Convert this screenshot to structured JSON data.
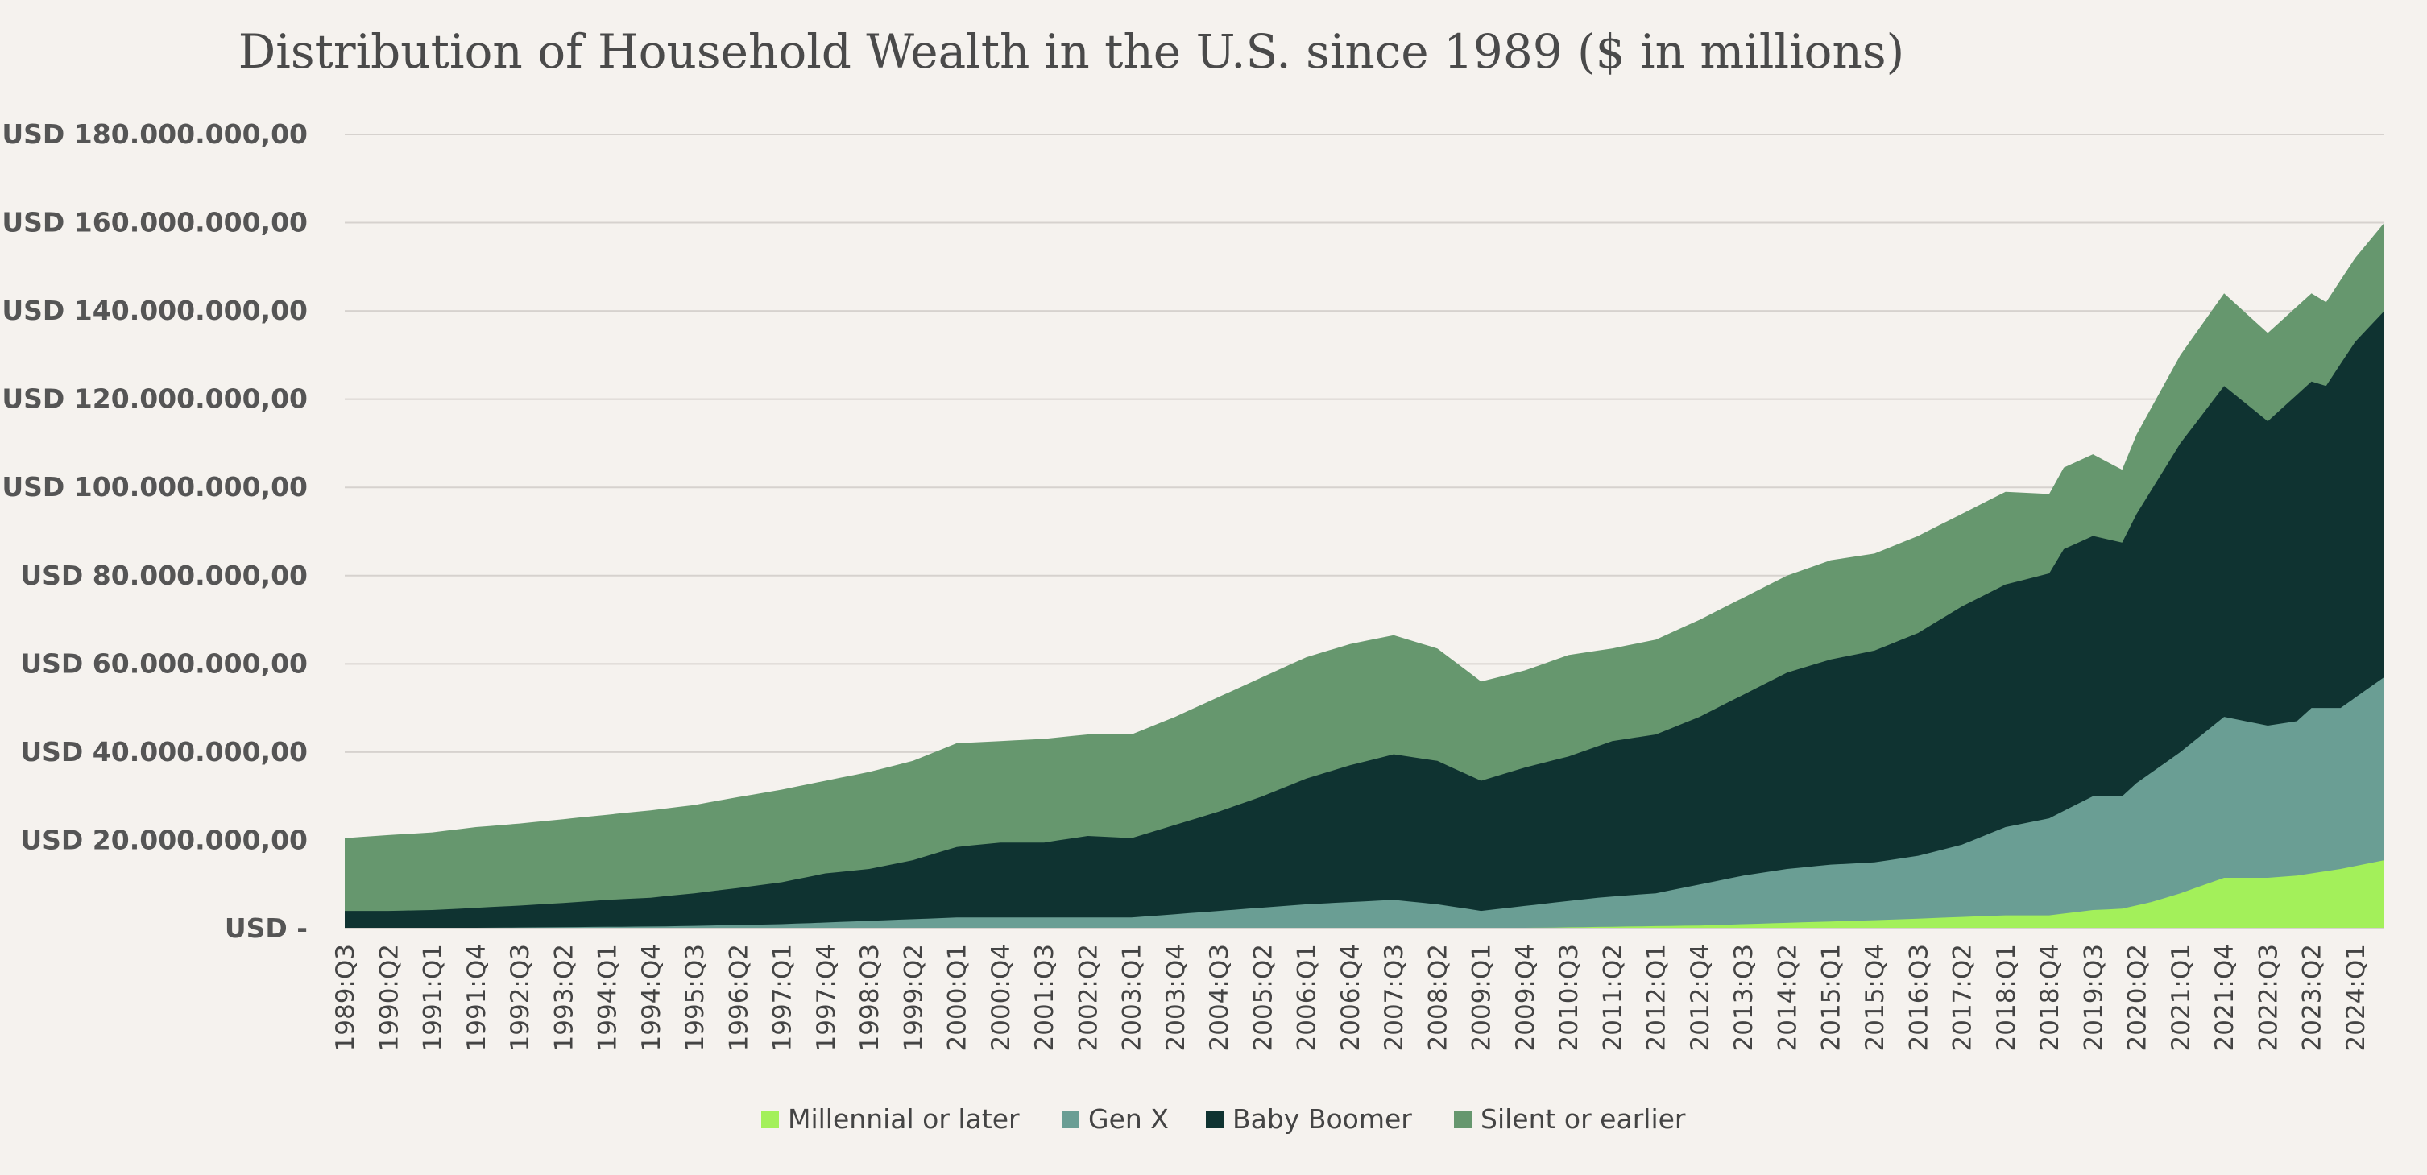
{
  "chart_data": {
    "type": "area",
    "stacked": true,
    "title": "Distribution of Household Wealth in the U.S. since 1989 ($ in millions)",
    "xlabel": "",
    "ylabel": "",
    "ylim": [
      0,
      180000000
    ],
    "y_ticks": [
      0,
      20000000,
      40000000,
      60000000,
      80000000,
      100000000,
      120000000,
      140000000,
      160000000,
      180000000
    ],
    "y_tick_labels": [
      "USD -",
      "USD 20.000.000,00",
      "USD 40.000.000,00",
      "USD 60.000.000,00",
      "USD 80.000.000,00",
      "USD 100.000.000,00",
      "USD 120.000.000,00",
      "USD 140.000.000,00",
      "USD 160.000.000,00",
      "USD 180.000.000,00"
    ],
    "x_range": [
      "1989:Q3",
      "2024:Q3"
    ],
    "x_tick_labels": [
      "1989:Q3",
      "1990:Q2",
      "1991:Q1",
      "1991:Q4",
      "1992:Q3",
      "1993:Q2",
      "1994:Q1",
      "1994:Q4",
      "1995:Q3",
      "1996:Q2",
      "1997:Q1",
      "1997:Q4",
      "1998:Q3",
      "1999:Q2",
      "2000:Q1",
      "2000:Q4",
      "2001:Q3",
      "2002:Q2",
      "2003:Q1",
      "2003:Q4",
      "2004:Q3",
      "2005:Q2",
      "2006:Q1",
      "2006:Q4",
      "2007:Q3",
      "2008:Q2",
      "2009:Q1",
      "2009:Q4",
      "2010:Q3",
      "2011:Q2",
      "2012:Q1",
      "2012:Q4",
      "2013:Q3",
      "2014:Q2",
      "2015:Q1",
      "2015:Q4",
      "2016:Q3",
      "2017:Q2",
      "2018:Q1",
      "2018:Q4",
      "2019:Q3",
      "2020:Q2",
      "2021:Q1",
      "2021:Q4",
      "2022:Q3",
      "2023:Q2",
      "2024:Q1"
    ],
    "grid": true,
    "legend_position": "bottom",
    "series": [
      {
        "name": "Millennial or later",
        "color": "#a3f05a",
        "points": [
          [
            "1989:Q3",
            0
          ],
          [
            "1995:Q1",
            0
          ],
          [
            "2000:Q1",
            0
          ],
          [
            "2005:Q1",
            0
          ],
          [
            "2010:Q1",
            200000
          ],
          [
            "2012:Q4",
            700000
          ],
          [
            "2014:Q1",
            1200000
          ],
          [
            "2015:Q1",
            1600000
          ],
          [
            "2016:Q1",
            2000000
          ],
          [
            "2017:Q1",
            2500000
          ],
          [
            "2018:Q1",
            3000000
          ],
          [
            "2018:Q4",
            3000000
          ],
          [
            "2019:Q3",
            4200000
          ],
          [
            "2020:Q1",
            4500000
          ],
          [
            "2020:Q3",
            6000000
          ],
          [
            "2021:Q1",
            8000000
          ],
          [
            "2021:Q4",
            11500000
          ],
          [
            "2022:Q3",
            11500000
          ],
          [
            "2023:Q1",
            12000000
          ],
          [
            "2023:Q4",
            13500000
          ],
          [
            "2024:Q3",
            15500000
          ]
        ]
      },
      {
        "name": "Gen X",
        "color": "#6a9e94",
        "points": [
          [
            "1989:Q3",
            0
          ],
          [
            "1992:Q1",
            200000
          ],
          [
            "1995:Q1",
            500000
          ],
          [
            "1997:Q1",
            1000000
          ],
          [
            "1998:Q1",
            1500000
          ],
          [
            "1999:Q1",
            2000000
          ],
          [
            "2000:Q1",
            2500000
          ],
          [
            "2001:Q4",
            2500000
          ],
          [
            "2003:Q1",
            2500000
          ],
          [
            "2004:Q1",
            3500000
          ],
          [
            "2005:Q1",
            4500000
          ],
          [
            "2006:Q1",
            5500000
          ],
          [
            "2007:Q3",
            6500000
          ],
          [
            "2008:Q2",
            5500000
          ],
          [
            "2009:Q1",
            4000000
          ],
          [
            "2010:Q1",
            5500000
          ],
          [
            "2011:Q1",
            7000000
          ],
          [
            "2012:Q1",
            8000000
          ],
          [
            "2012:Q4",
            10000000
          ],
          [
            "2013:Q3",
            12000000
          ],
          [
            "2014:Q2",
            13500000
          ],
          [
            "2015:Q1",
            14500000
          ],
          [
            "2015:Q4",
            15000000
          ],
          [
            "2016:Q3",
            16500000
          ],
          [
            "2017:Q2",
            19000000
          ],
          [
            "2018:Q1",
            23000000
          ],
          [
            "2018:Q4",
            25000000
          ],
          [
            "2019:Q3",
            30000000
          ],
          [
            "2020:Q1",
            30000000
          ],
          [
            "2020:Q2",
            33000000
          ],
          [
            "2021:Q1",
            40000000
          ],
          [
            "2021:Q4",
            48000000
          ],
          [
            "2022:Q3",
            46000000
          ],
          [
            "2023:Q1",
            47000000
          ],
          [
            "2023:Q2",
            50000000
          ],
          [
            "2023:Q4",
            50000000
          ],
          [
            "2024:Q3",
            57000000
          ]
        ]
      },
      {
        "name": "Baby Boomer",
        "color": "#0f3331",
        "points": [
          [
            "1989:Q3",
            4000000
          ],
          [
            "1990:Q2",
            4000000
          ],
          [
            "1991:Q1",
            4200000
          ],
          [
            "1991:Q4",
            4700000
          ],
          [
            "1992:Q3",
            5200000
          ],
          [
            "1993:Q2",
            5800000
          ],
          [
            "1994:Q1",
            6500000
          ],
          [
            "1994:Q4",
            7000000
          ],
          [
            "1995:Q3",
            8000000
          ],
          [
            "1996:Q2",
            9200000
          ],
          [
            "1997:Q1",
            10500000
          ],
          [
            "1997:Q4",
            12500000
          ],
          [
            "1998:Q3",
            13500000
          ],
          [
            "1999:Q2",
            15500000
          ],
          [
            "2000:Q1",
            18500000
          ],
          [
            "2000:Q4",
            19500000
          ],
          [
            "2001:Q3",
            19500000
          ],
          [
            "2002:Q2",
            21000000
          ],
          [
            "2003:Q1",
            20500000
          ],
          [
            "2003:Q4",
            23500000
          ],
          [
            "2004:Q3",
            26500000
          ],
          [
            "2005:Q2",
            30000000
          ],
          [
            "2006:Q1",
            34000000
          ],
          [
            "2006:Q4",
            37000000
          ],
          [
            "2007:Q3",
            39500000
          ],
          [
            "2008:Q2",
            38000000
          ],
          [
            "2009:Q1",
            33500000
          ],
          [
            "2009:Q4",
            36500000
          ],
          [
            "2010:Q3",
            39000000
          ],
          [
            "2011:Q2",
            42500000
          ],
          [
            "2012:Q1",
            44000000
          ],
          [
            "2012:Q4",
            48000000
          ],
          [
            "2013:Q3",
            53000000
          ],
          [
            "2014:Q2",
            58000000
          ],
          [
            "2015:Q1",
            61000000
          ],
          [
            "2015:Q4",
            63000000
          ],
          [
            "2016:Q3",
            67000000
          ],
          [
            "2017:Q2",
            73000000
          ],
          [
            "2018:Q1",
            78000000
          ],
          [
            "2018:Q4",
            80500000
          ],
          [
            "2019:Q1",
            86000000
          ],
          [
            "2019:Q3",
            89000000
          ],
          [
            "2020:Q1",
            87500000
          ],
          [
            "2020:Q2",
            94000000
          ],
          [
            "2021:Q1",
            110000000
          ],
          [
            "2021:Q4",
            123000000
          ],
          [
            "2022:Q3",
            115000000
          ],
          [
            "2023:Q2",
            124000000
          ],
          [
            "2023:Q3",
            123000000
          ],
          [
            "2024:Q1",
            133000000
          ],
          [
            "2024:Q3",
            140000000
          ]
        ]
      },
      {
        "name": "Silent or earlier",
        "color": "#66976e",
        "points": [
          [
            "1989:Q3",
            20500000
          ],
          [
            "1990:Q2",
            21200000
          ],
          [
            "1991:Q1",
            21800000
          ],
          [
            "1991:Q4",
            23000000
          ],
          [
            "1992:Q3",
            23800000
          ],
          [
            "1993:Q2",
            24800000
          ],
          [
            "1994:Q1",
            25800000
          ],
          [
            "1994:Q4",
            26800000
          ],
          [
            "1995:Q3",
            28000000
          ],
          [
            "1996:Q2",
            29800000
          ],
          [
            "1997:Q1",
            31500000
          ],
          [
            "1997:Q4",
            33500000
          ],
          [
            "1998:Q3",
            35500000
          ],
          [
            "1999:Q2",
            38000000
          ],
          [
            "2000:Q1",
            42000000
          ],
          [
            "2000:Q4",
            42500000
          ],
          [
            "2001:Q3",
            43000000
          ],
          [
            "2002:Q2",
            44000000
          ],
          [
            "2003:Q1",
            44000000
          ],
          [
            "2003:Q4",
            48000000
          ],
          [
            "2004:Q3",
            52500000
          ],
          [
            "2005:Q2",
            57000000
          ],
          [
            "2006:Q1",
            61500000
          ],
          [
            "2006:Q4",
            64500000
          ],
          [
            "2007:Q3",
            66500000
          ],
          [
            "2008:Q2",
            63500000
          ],
          [
            "2009:Q1",
            56000000
          ],
          [
            "2009:Q4",
            58500000
          ],
          [
            "2010:Q3",
            62000000
          ],
          [
            "2011:Q2",
            63500000
          ],
          [
            "2012:Q1",
            65500000
          ],
          [
            "2012:Q4",
            70000000
          ],
          [
            "2013:Q3",
            75000000
          ],
          [
            "2014:Q2",
            80000000
          ],
          [
            "2015:Q1",
            83500000
          ],
          [
            "2015:Q4",
            85000000
          ],
          [
            "2016:Q3",
            89000000
          ],
          [
            "2017:Q2",
            94000000
          ],
          [
            "2018:Q1",
            99000000
          ],
          [
            "2018:Q4",
            98500000
          ],
          [
            "2019:Q1",
            104500000
          ],
          [
            "2019:Q3",
            107500000
          ],
          [
            "2020:Q1",
            104000000
          ],
          [
            "2020:Q2",
            112000000
          ],
          [
            "2021:Q1",
            130000000
          ],
          [
            "2021:Q4",
            144000000
          ],
          [
            "2022:Q3",
            135000000
          ],
          [
            "2023:Q2",
            144000000
          ],
          [
            "2023:Q3",
            142000000
          ],
          [
            "2024:Q1",
            152000000
          ],
          [
            "2024:Q3",
            160000000
          ]
        ]
      }
    ]
  }
}
